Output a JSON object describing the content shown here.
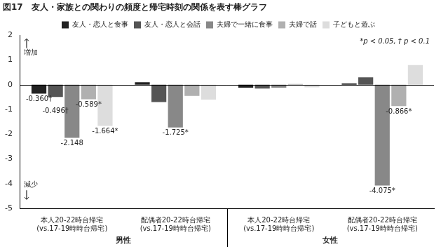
{
  "chart_data": {
    "type": "bar",
    "title": "図17　友人・家族との関わりの頻度と帰宅時刻の関係を表す棒グラフ",
    "categories": [
      "本人20-22時台帰宅\n(vs.17-19時時台帰宅)",
      "配偶者20-22時台帰宅\n(vs.17-19時時台帰宅)",
      "本人20-22時台帰宅\n(vs.17-19時時台帰宅)",
      "配偶者20-22時台帰宅\n(vs.17-19時時台帰宅)"
    ],
    "groups": [
      "男性",
      "男性",
      "女性",
      "女性"
    ],
    "series": [
      {
        "name": "友人・恋人と食事",
        "color": "#222222",
        "values": [
          -0.36,
          0.1,
          -0.12,
          0.05
        ],
        "value_labels": [
          "-0.360†",
          null,
          null,
          null
        ]
      },
      {
        "name": "友人・恋人と会話",
        "color": "#555555",
        "values": [
          -0.496,
          -0.7,
          -0.15,
          0.3
        ],
        "value_labels": [
          "-0.496†",
          null,
          null,
          null
        ]
      },
      {
        "name": "夫婦で一緒に食事",
        "color": "#888888",
        "values": [
          -2.148,
          -1.725,
          -0.12,
          -4.075
        ],
        "value_labels": [
          "-2.148",
          "-1.725*",
          null,
          "-4.075*"
        ]
      },
      {
        "name": "夫婦で話",
        "color": "#b0b0b0",
        "values": [
          -0.589,
          -0.45,
          0.03,
          -0.866
        ],
        "value_labels": [
          "-0.589*",
          null,
          null,
          "-0.866*"
        ]
      },
      {
        "name": "子どもと遊ぶ",
        "color": "#dddddd",
        "values": [
          -1.664,
          -0.6,
          -0.1,
          0.8
        ],
        "value_labels": [
          "-1.664*",
          null,
          null,
          null
        ]
      }
    ],
    "annotations": {
      "note": "*p < 0.05, † p < 0.1",
      "up": "増加",
      "down": "減少"
    },
    "ylim": [
      -5,
      2
    ],
    "yticks": [
      -5,
      -4,
      -3,
      -2,
      -1,
      0,
      1,
      2
    ],
    "grid": false,
    "legend": "top",
    "data_labels": true
  }
}
